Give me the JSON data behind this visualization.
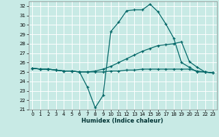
{
  "xlabel": "Humidex (Indice chaleur)",
  "bg_color": "#c8eae5",
  "grid_color": "#b0d8d2",
  "line_color": "#006666",
  "xlim": [
    -0.5,
    23.5
  ],
  "ylim": [
    21,
    32.5
  ],
  "xticks": [
    0,
    1,
    2,
    3,
    4,
    5,
    6,
    7,
    8,
    9,
    10,
    11,
    12,
    13,
    14,
    15,
    16,
    17,
    18,
    19,
    20,
    21,
    22,
    23
  ],
  "yticks": [
    21,
    22,
    23,
    24,
    25,
    26,
    27,
    28,
    29,
    30,
    31,
    32
  ],
  "curve1_x": [
    0,
    1,
    2,
    3,
    4,
    5,
    6,
    7,
    8,
    9,
    10,
    11,
    12,
    13,
    14,
    15,
    16,
    17,
    18,
    19,
    20,
    21,
    22,
    23
  ],
  "curve1_y": [
    25.4,
    25.3,
    25.3,
    25.2,
    25.1,
    25.1,
    25.0,
    23.4,
    21.2,
    22.5,
    29.3,
    30.3,
    31.5,
    31.6,
    31.6,
    32.2,
    31.4,
    30.1,
    28.6,
    26.0,
    25.5,
    25.0,
    25.0,
    24.9
  ],
  "curve2_x": [
    0,
    1,
    2,
    3,
    4,
    5,
    6,
    7,
    8,
    9,
    10,
    11,
    12,
    13,
    14,
    15,
    16,
    17,
    18,
    19,
    20,
    21,
    22,
    23
  ],
  "curve2_y": [
    25.4,
    25.3,
    25.3,
    25.2,
    25.1,
    25.1,
    25.0,
    25.0,
    25.1,
    25.3,
    25.6,
    26.0,
    26.4,
    26.8,
    27.2,
    27.5,
    27.8,
    27.9,
    28.0,
    28.2,
    26.1,
    25.5,
    25.0,
    24.9
  ],
  "curve3_x": [
    0,
    1,
    2,
    3,
    4,
    5,
    6,
    7,
    8,
    9,
    10,
    11,
    12,
    13,
    14,
    15,
    16,
    17,
    18,
    19,
    20,
    21,
    22,
    23
  ],
  "curve3_y": [
    25.4,
    25.3,
    25.3,
    25.2,
    25.1,
    25.1,
    25.0,
    25.0,
    25.0,
    25.0,
    25.1,
    25.1,
    25.2,
    25.2,
    25.3,
    25.3,
    25.3,
    25.3,
    25.3,
    25.3,
    25.3,
    25.1,
    25.0,
    24.9
  ]
}
